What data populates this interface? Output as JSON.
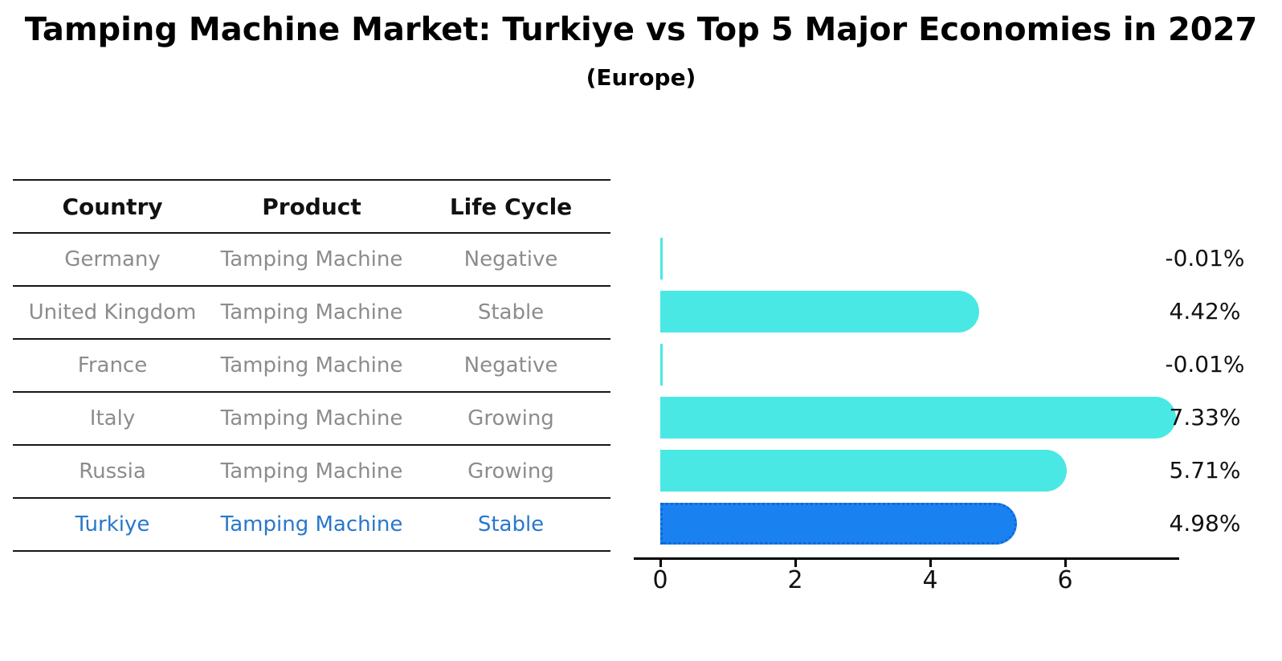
{
  "title": "Tamping Machine Market: Turkiye vs Top 5 Major Economies in 2027",
  "subtitle": "(Europe)",
  "table": {
    "headers": [
      "Country",
      "Product",
      "Life Cycle"
    ],
    "rows": [
      {
        "country": "Germany",
        "product": "Tamping Machine",
        "life_cycle": "Negative",
        "highlight": false
      },
      {
        "country": "United Kingdom",
        "product": "Tamping Machine",
        "life_cycle": "Stable",
        "highlight": false
      },
      {
        "country": "France",
        "product": "Tamping Machine",
        "life_cycle": "Negative",
        "highlight": false
      },
      {
        "country": "Italy",
        "product": "Tamping Machine",
        "life_cycle": "Growing",
        "highlight": false
      },
      {
        "country": "Russia",
        "product": "Tamping Machine",
        "life_cycle": "Growing",
        "highlight": false
      },
      {
        "country": "Turkiye",
        "product": "Tamping Machine",
        "life_cycle": "Stable",
        "highlight": true
      }
    ]
  },
  "chart_data": {
    "type": "bar",
    "orientation": "horizontal",
    "categories": [
      "Germany",
      "United Kingdom",
      "France",
      "Italy",
      "Russia",
      "Turkiye"
    ],
    "values": [
      -0.01,
      4.42,
      -0.01,
      7.33,
      5.71,
      4.98
    ],
    "value_labels": [
      "-0.01%",
      "4.42%",
      "-0.01%",
      "7.33%",
      "5.71%",
      "4.98%"
    ],
    "xticks": [
      "0",
      "2",
      "4",
      "6"
    ],
    "xlim": [
      0,
      7.7
    ],
    "grid": false,
    "legend": null,
    "bar_color": "#4ae8e4",
    "highlight_bar_color": "#1a82f0",
    "highlight_index": 5
  },
  "colors": {
    "bar_cyan": "#4ae8e4",
    "bar_blue": "#1a82f0",
    "highlight_text": "#2878cb",
    "table_text_gray": "#8c8c8c",
    "axis_black": "#000000"
  }
}
